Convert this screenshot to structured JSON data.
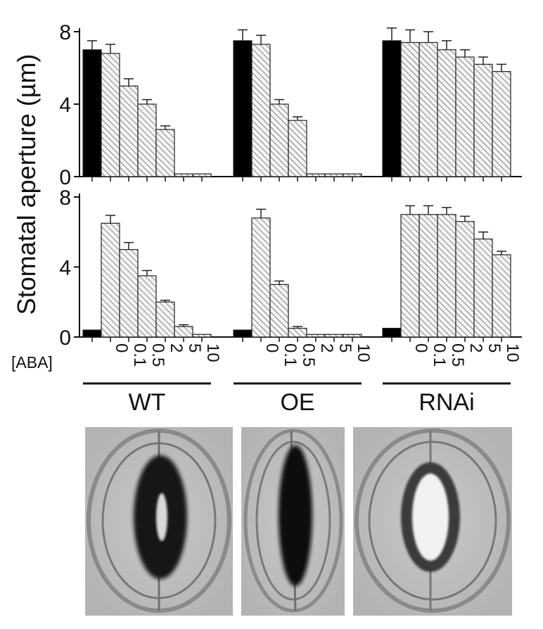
{
  "chart_data": [
    {
      "type": "bar",
      "panel": "top",
      "ylabel": "Stomatal aperture (µm)",
      "ylim": [
        0,
        8
      ],
      "yticks": [
        "0",
        "4",
        "8"
      ],
      "x_condition_label": "[ABA]",
      "concentrations": [
        "0",
        "0.1",
        "0.5",
        "2",
        "5",
        "10"
      ],
      "groups": [
        {
          "name": "WT",
          "control": 7.0,
          "control_err": 0.5,
          "values": [
            6.8,
            5.0,
            4.0,
            2.6,
            0.15,
            0.15
          ],
          "errors": [
            0.5,
            0.4,
            0.25,
            0.2,
            0.0,
            0.0
          ]
        },
        {
          "name": "OE",
          "control": 7.5,
          "control_err": 0.6,
          "values": [
            7.3,
            4.0,
            3.1,
            0.15,
            0.15,
            0.15
          ],
          "errors": [
            0.5,
            0.25,
            0.2,
            0.0,
            0.0,
            0.0
          ]
        },
        {
          "name": "RNAi",
          "control": 7.5,
          "control_err": 0.7,
          "values": [
            7.4,
            7.4,
            7.0,
            6.6,
            6.2,
            5.8
          ],
          "errors": [
            0.7,
            0.6,
            0.5,
            0.4,
            0.4,
            0.4
          ]
        }
      ]
    },
    {
      "type": "bar",
      "panel": "bottom",
      "ylabel": "Stomatal aperture (µm)",
      "ylim": [
        0,
        8
      ],
      "yticks": [
        "0",
        "4",
        "8"
      ],
      "x_condition_label": "[ABA]",
      "concentrations": [
        "0",
        "0.1",
        "0.5",
        "2",
        "5",
        "10"
      ],
      "groups": [
        {
          "name": "WT",
          "control": 0.4,
          "control_err": 0.0,
          "values": [
            6.5,
            5.0,
            3.5,
            2.0,
            0.6,
            0.15
          ],
          "errors": [
            0.45,
            0.4,
            0.3,
            0.1,
            0.1,
            0.0
          ]
        },
        {
          "name": "OE",
          "control": 0.4,
          "control_err": 0.0,
          "values": [
            6.8,
            3.0,
            0.5,
            0.15,
            0.15,
            0.15
          ],
          "errors": [
            0.5,
            0.2,
            0.1,
            0.0,
            0.0,
            0.0
          ]
        },
        {
          "name": "RNAi",
          "control": 0.5,
          "control_err": 0.0,
          "values": [
            7.0,
            7.0,
            7.0,
            6.6,
            5.6,
            4.7
          ],
          "errors": [
            0.5,
            0.5,
            0.4,
            0.3,
            0.4,
            0.2
          ]
        }
      ]
    }
  ],
  "colors": {
    "control_bar": "#000000",
    "hatch_bar": "#f4f4f4",
    "axis": "#111111"
  },
  "micrographs": [
    {
      "name": "WT",
      "state": "open stoma"
    },
    {
      "name": "OE",
      "state": "open stoma"
    },
    {
      "name": "RNAi",
      "state": "open stoma"
    }
  ]
}
